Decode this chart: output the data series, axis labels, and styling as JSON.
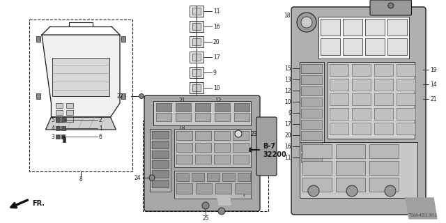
{
  "bg_color": "#ffffff",
  "line_color": "#1a1a1a",
  "watermark": "TWA4B1301",
  "fr_label": "FR."
}
